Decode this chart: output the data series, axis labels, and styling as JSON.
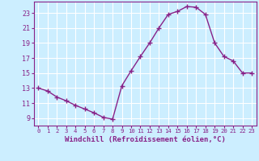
{
  "x": [
    0,
    1,
    2,
    3,
    4,
    5,
    6,
    7,
    8,
    9,
    10,
    11,
    12,
    13,
    14,
    15,
    16,
    17,
    18,
    19,
    20,
    21,
    22,
    23
  ],
  "y": [
    13,
    12.6,
    11.8,
    11.3,
    10.7,
    10.2,
    9.7,
    9.1,
    8.85,
    13.3,
    15.3,
    17.2,
    19.0,
    21.0,
    22.8,
    23.2,
    23.85,
    23.75,
    22.8,
    19.0,
    17.2,
    16.6,
    15.0,
    15.0
  ],
  "line_color": "#882288",
  "marker": "+",
  "marker_size": 4,
  "marker_lw": 1.0,
  "bg_color": "#cceeff",
  "grid_color": "#ffffff",
  "xlabel": "Windchill (Refroidissement éolien,°C)",
  "xlabel_color": "#882288",
  "tick_color": "#882288",
  "spine_color": "#882288",
  "ylim": [
    8.0,
    24.5
  ],
  "xlim": [
    -0.5,
    23.5
  ],
  "yticks": [
    9,
    11,
    13,
    15,
    17,
    19,
    21,
    23
  ],
  "xticks": [
    0,
    1,
    2,
    3,
    4,
    5,
    6,
    7,
    8,
    9,
    10,
    11,
    12,
    13,
    14,
    15,
    16,
    17,
    18,
    19,
    20,
    21,
    22,
    23
  ],
  "linewidth": 1.0,
  "xlabel_fontsize": 6.5,
  "xtick_fontsize": 5.2,
  "ytick_fontsize": 6.0
}
